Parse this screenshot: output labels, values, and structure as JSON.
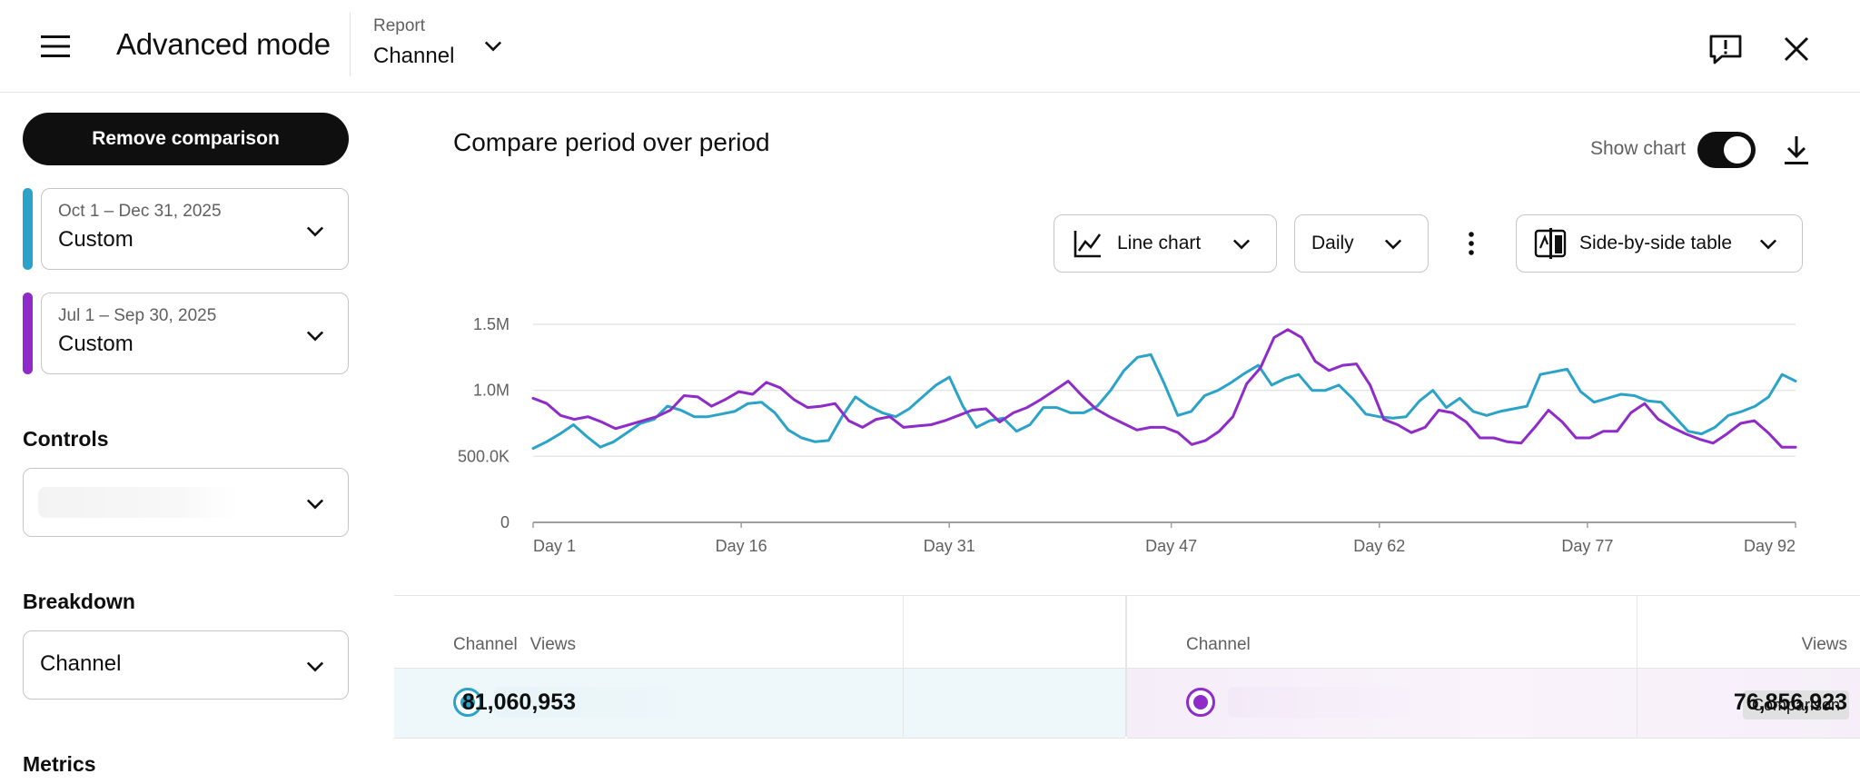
{
  "header": {
    "title": "Advanced mode",
    "report_caption": "Report",
    "report_value": "Channel"
  },
  "sidebar": {
    "remove_comparison_label": "Remove comparison",
    "periods": [
      {
        "dates": "Oct 1 – Dec 31, 2025",
        "value": "Custom",
        "color": "#2ba3c9"
      },
      {
        "dates": "Jul 1 – Sep 30, 2025",
        "value": "Custom",
        "color": "#8e2bc9"
      }
    ],
    "controls_label": "Controls",
    "controls_value": "",
    "breakdown_label": "Breakdown",
    "breakdown_value": "Channel",
    "metrics_label": "Metrics"
  },
  "main": {
    "title": "Compare period over period",
    "show_chart_label": "Show chart",
    "show_chart_on": true,
    "chart_type_label": "Line chart",
    "granularity_label": "Daily",
    "table_mode_label": "Side-by-side table"
  },
  "chart_data": {
    "type": "line",
    "x_tick_labels": [
      "Day 1",
      "Day 16",
      "Day 31",
      "Day 47",
      "Day 62",
      "Day 77",
      "Day 92"
    ],
    "y_tick_labels": [
      "0",
      "500.0K",
      "1.0M",
      "1.5M"
    ],
    "ylim": [
      0,
      1500000
    ],
    "x_range": [
      1,
      92
    ],
    "grid": true,
    "series": [
      {
        "color": "#2ba3c9",
        "values": [
          560000,
          610000,
          670000,
          740000,
          650000,
          570000,
          610000,
          680000,
          750000,
          780000,
          880000,
          850000,
          800000,
          800000,
          820000,
          840000,
          900000,
          910000,
          830000,
          700000,
          640000,
          610000,
          620000,
          800000,
          950000,
          880000,
          830000,
          800000,
          860000,
          950000,
          1040000,
          1100000,
          880000,
          720000,
          770000,
          790000,
          690000,
          740000,
          870000,
          870000,
          830000,
          830000,
          880000,
          1000000,
          1150000,
          1250000,
          1270000,
          1050000,
          810000,
          840000,
          960000,
          1000000,
          1060000,
          1130000,
          1190000,
          1040000,
          1090000,
          1120000,
          1000000,
          1000000,
          1040000,
          940000,
          820000,
          800000,
          790000,
          800000,
          920000,
          1000000,
          870000,
          940000,
          840000,
          810000,
          840000,
          860000,
          880000,
          1120000,
          1140000,
          1160000,
          990000,
          910000,
          940000,
          970000,
          960000,
          920000,
          910000,
          800000,
          690000,
          670000,
          720000,
          810000,
          840000,
          880000,
          950000,
          1120000,
          1070000
        ]
      },
      {
        "color": "#8e2bc9",
        "values": [
          940000,
          900000,
          810000,
          780000,
          800000,
          760000,
          710000,
          740000,
          770000,
          800000,
          850000,
          960000,
          950000,
          880000,
          930000,
          990000,
          970000,
          1060000,
          1020000,
          930000,
          870000,
          880000,
          900000,
          770000,
          720000,
          780000,
          800000,
          720000,
          730000,
          740000,
          770000,
          810000,
          850000,
          860000,
          760000,
          830000,
          870000,
          930000,
          1000000,
          1070000,
          960000,
          860000,
          800000,
          750000,
          700000,
          720000,
          720000,
          680000,
          590000,
          620000,
          690000,
          800000,
          1050000,
          1170000,
          1400000,
          1460000,
          1400000,
          1220000,
          1150000,
          1190000,
          1200000,
          1040000,
          780000,
          740000,
          680000,
          720000,
          850000,
          830000,
          760000,
          640000,
          640000,
          610000,
          600000,
          720000,
          850000,
          760000,
          640000,
          640000,
          690000,
          690000,
          830000,
          900000,
          780000,
          720000,
          670000,
          630000,
          600000,
          670000,
          750000,
          770000,
          680000,
          570000,
          570000
        ]
      }
    ]
  },
  "table": {
    "current": {
      "col_channel": "Channel",
      "col_views": "Views",
      "views": "81,060,953",
      "color": "#2ba3c9"
    },
    "comparison": {
      "col_channel": "Channel",
      "col_views": "Views",
      "badge": "Comparison",
      "views": "76,856,923",
      "color": "#8e2bc9"
    }
  }
}
